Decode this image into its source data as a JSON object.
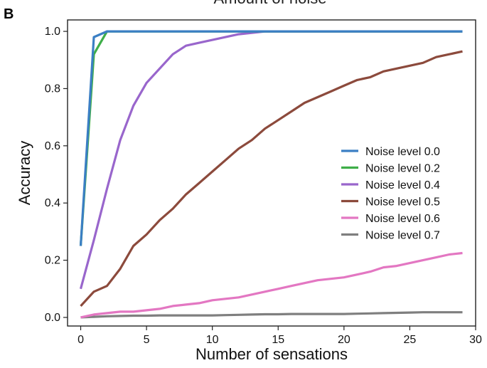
{
  "panel_letter": "B",
  "clipped_title": "Amount of noise",
  "chart_data": {
    "type": "line",
    "title": "Amount of noise",
    "xlabel": "Number of sensations",
    "ylabel": "Accuracy",
    "xlim": [
      -1,
      30
    ],
    "ylim": [
      -0.03,
      1.04
    ],
    "xticks": [
      0,
      5,
      10,
      15,
      20,
      25,
      30
    ],
    "yticks": [
      0.0,
      0.2,
      0.4,
      0.6,
      0.8,
      1.0
    ],
    "xtick_labels": [
      "0",
      "5",
      "10",
      "15",
      "20",
      "25",
      "30"
    ],
    "ytick_labels": [
      "0.0",
      "0.2",
      "0.4",
      "0.6",
      "0.8",
      "1.0"
    ],
    "legend_position": "center-right",
    "grid": false,
    "x": [
      0,
      1,
      2,
      3,
      4,
      5,
      6,
      7,
      8,
      9,
      10,
      11,
      12,
      13,
      14,
      15,
      16,
      17,
      18,
      19,
      20,
      21,
      22,
      23,
      24,
      25,
      26,
      27,
      28,
      29
    ],
    "series": [
      {
        "name": "Noise level 0.0",
        "color": "#3b7fc4",
        "values": [
          0.25,
          0.98,
          1,
          1,
          1,
          1,
          1,
          1,
          1,
          1,
          1,
          1,
          1,
          1,
          1,
          1,
          1,
          1,
          1,
          1,
          1,
          1,
          1,
          1,
          1,
          1,
          1,
          1,
          1,
          1
        ]
      },
      {
        "name": "Noise level 0.2",
        "color": "#3fae49",
        "values": [
          0.25,
          0.92,
          1,
          1,
          1,
          1,
          1,
          1,
          1,
          1,
          1,
          1,
          1,
          1,
          1,
          1,
          1,
          1,
          1,
          1,
          1,
          1,
          1,
          1,
          1,
          1,
          1,
          1,
          1,
          1
        ]
      },
      {
        "name": "Noise level 0.4",
        "color": "#9966cc",
        "values": [
          0.1,
          0.27,
          0.45,
          0.62,
          0.74,
          0.82,
          0.87,
          0.92,
          0.95,
          0.96,
          0.97,
          0.98,
          0.99,
          0.995,
          1,
          1,
          1,
          1,
          1,
          1,
          1,
          1,
          1,
          1,
          1,
          1,
          1,
          1,
          1,
          1
        ]
      },
      {
        "name": "Noise level 0.5",
        "color": "#8c4a3c",
        "values": [
          0.04,
          0.09,
          0.11,
          0.17,
          0.25,
          0.29,
          0.34,
          0.38,
          0.43,
          0.47,
          0.51,
          0.55,
          0.59,
          0.62,
          0.66,
          0.69,
          0.72,
          0.75,
          0.77,
          0.79,
          0.81,
          0.83,
          0.84,
          0.86,
          0.87,
          0.88,
          0.89,
          0.91,
          0.92,
          0.93
        ]
      },
      {
        "name": "Noise level 0.6",
        "color": "#e377c2",
        "values": [
          0.0,
          0.01,
          0.015,
          0.02,
          0.02,
          0.025,
          0.03,
          0.04,
          0.045,
          0.05,
          0.06,
          0.065,
          0.07,
          0.08,
          0.09,
          0.1,
          0.11,
          0.12,
          0.13,
          0.135,
          0.14,
          0.15,
          0.16,
          0.175,
          0.18,
          0.19,
          0.2,
          0.21,
          0.22,
          0.225
        ]
      },
      {
        "name": "Noise level 0.7",
        "color": "#7f7f7f",
        "values": [
          0.0,
          0.002,
          0.004,
          0.005,
          0.006,
          0.006,
          0.007,
          0.007,
          0.007,
          0.007,
          0.007,
          0.008,
          0.009,
          0.01,
          0.011,
          0.011,
          0.012,
          0.012,
          0.012,
          0.012,
          0.012,
          0.013,
          0.014,
          0.015,
          0.016,
          0.017,
          0.018,
          0.018,
          0.018,
          0.018
        ]
      }
    ]
  }
}
